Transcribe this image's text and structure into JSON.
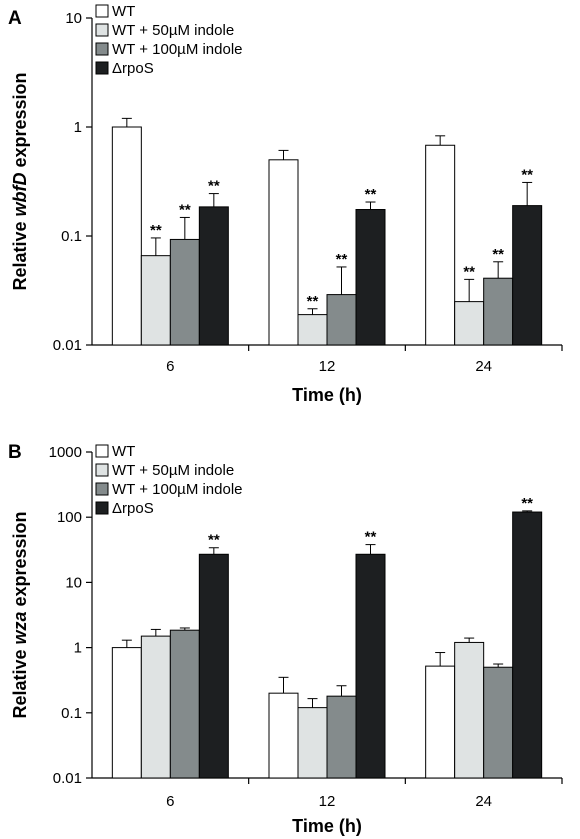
{
  "chart_data": [
    {
      "panel": "A",
      "type": "bar",
      "yscale": "log",
      "ylim": [
        0.01,
        10
      ],
      "yticks": [
        "0.01",
        "0.1",
        "1",
        "10"
      ],
      "ylabel_prefix": "Relative ",
      "ylabel_gene": "wbfD",
      "ylabel_suffix": " expression",
      "xlabel": "Time (h)",
      "categories": [
        "6",
        "12",
        "24"
      ],
      "legend_position": "top-left",
      "series": [
        {
          "name": "WT",
          "color": "#ffffff",
          "values": [
            1.0,
            0.5,
            0.68
          ],
          "errors": [
            0.2,
            0.11,
            0.15
          ],
          "sig": [
            "",
            "",
            ""
          ]
        },
        {
          "name": "WT + 50µM indole",
          "color": "#dfe3e3",
          "values": [
            0.066,
            0.019,
            0.025
          ],
          "errors": [
            0.03,
            0.0025,
            0.015
          ],
          "sig": [
            "**",
            "**",
            "**"
          ]
        },
        {
          "name": "WT + 100µM indole",
          "color": "#848b8c",
          "values": [
            0.093,
            0.029,
            0.041
          ],
          "errors": [
            0.055,
            0.023,
            0.017
          ],
          "sig": [
            "**",
            "**",
            "**"
          ]
        },
        {
          "name": "ΔrpoS",
          "color": "#1d1f21",
          "values": [
            0.185,
            0.175,
            0.19
          ],
          "errors": [
            0.06,
            0.03,
            0.12
          ],
          "sig": [
            "**",
            "**",
            "**"
          ]
        }
      ]
    },
    {
      "panel": "B",
      "type": "bar",
      "yscale": "log",
      "ylim": [
        0.01,
        1000
      ],
      "yticks": [
        "0.01",
        "0.1",
        "1",
        "10",
        "100",
        "1000"
      ],
      "ylabel_prefix": "Relative ",
      "ylabel_gene": "wza",
      "ylabel_suffix": " expression",
      "xlabel": "Time (h)",
      "categories": [
        "6",
        "12",
        "24"
      ],
      "legend_position": "top-left",
      "series": [
        {
          "name": "WT",
          "color": "#ffffff",
          "values": [
            1.0,
            0.2,
            0.52
          ],
          "errors": [
            0.3,
            0.15,
            0.32
          ],
          "sig": [
            "",
            "",
            ""
          ]
        },
        {
          "name": "WT + 50µM indole",
          "color": "#dfe3e3",
          "values": [
            1.5,
            0.12,
            1.2
          ],
          "errors": [
            0.4,
            0.045,
            0.2
          ],
          "sig": [
            "",
            "",
            ""
          ]
        },
        {
          "name": "WT + 100µM indole",
          "color": "#848b8c",
          "values": [
            1.85,
            0.18,
            0.5
          ],
          "errors": [
            0.15,
            0.08,
            0.06
          ],
          "sig": [
            "",
            "",
            ""
          ]
        },
        {
          "name": "ΔrpoS",
          "color": "#1d1f21",
          "values": [
            27,
            27,
            120
          ],
          "errors": [
            7,
            11,
            5
          ],
          "sig": [
            "**",
            "**",
            "**"
          ]
        }
      ]
    }
  ]
}
